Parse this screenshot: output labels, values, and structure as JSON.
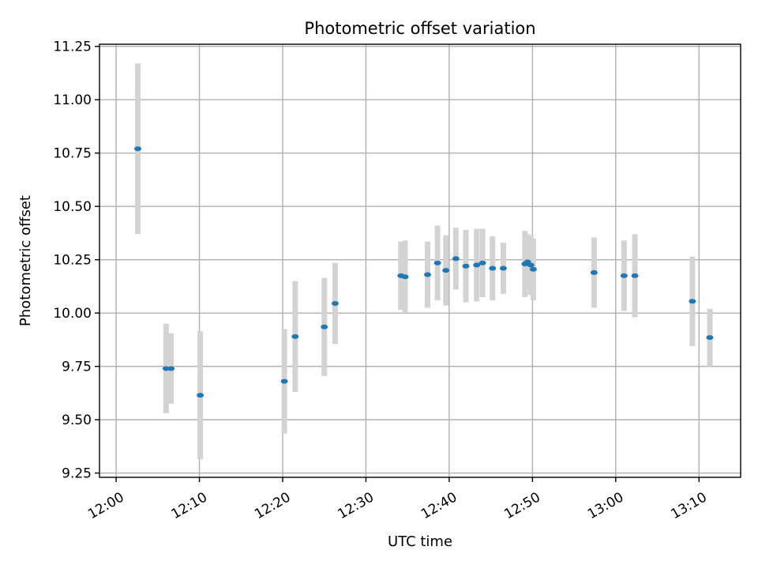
{
  "chart_data": {
    "type": "scatter",
    "title": "Photometric offset variation",
    "xlabel": "UTC time",
    "ylabel": "Photometric offset",
    "grid": true,
    "x_unit": "minutes",
    "xlim": [
      "11:58",
      "13:15"
    ],
    "ylim": [
      9.23,
      11.26
    ],
    "x_ticks": [
      "12:00",
      "12:10",
      "12:20",
      "12:30",
      "12:40",
      "12:50",
      "13:00",
      "13:10"
    ],
    "y_ticks": [
      "9.25",
      "9.50",
      "9.75",
      "10.00",
      "10.25",
      "10.50",
      "10.75",
      "11.00",
      "11.25"
    ],
    "y_tick_values": [
      9.25,
      9.5,
      9.75,
      10.0,
      10.25,
      10.5,
      10.75,
      11.0,
      11.25
    ],
    "colors": {
      "point": "#1f77b4",
      "errorbar": "#d3d3d3",
      "grid": "#b0b0b0"
    },
    "points": [
      {
        "x": "12:02.6",
        "y": 10.77,
        "err": 0.4
      },
      {
        "x": "12:06.0",
        "y": 9.74,
        "err": 0.21
      },
      {
        "x": "12:06.6",
        "y": 9.74,
        "err": 0.165
      },
      {
        "x": "12:10.1",
        "y": 9.615,
        "err": 0.3
      },
      {
        "x": "12:20.2",
        "y": 9.68,
        "err": 0.245
      },
      {
        "x": "12:21.5",
        "y": 9.89,
        "err": 0.26
      },
      {
        "x": "12:25.0",
        "y": 9.935,
        "err": 0.23
      },
      {
        "x": "12:26.3",
        "y": 10.045,
        "err": 0.19
      },
      {
        "x": "12:34.2",
        "y": 10.175,
        "err": 0.16
      },
      {
        "x": "12:34.7",
        "y": 10.17,
        "err": 0.17
      },
      {
        "x": "12:37.4",
        "y": 10.18,
        "err": 0.155
      },
      {
        "x": "12:38.6",
        "y": 10.235,
        "err": 0.175
      },
      {
        "x": "12:39.6",
        "y": 10.2,
        "err": 0.165
      },
      {
        "x": "12:40.8",
        "y": 10.255,
        "err": 0.145
      },
      {
        "x": "12:42.0",
        "y": 10.22,
        "err": 0.17
      },
      {
        "x": "12:43.3",
        "y": 10.225,
        "err": 0.17
      },
      {
        "x": "12:44.0",
        "y": 10.235,
        "err": 0.16
      },
      {
        "x": "12:45.2",
        "y": 10.21,
        "err": 0.15
      },
      {
        "x": "12:46.5",
        "y": 10.21,
        "err": 0.12
      },
      {
        "x": "12:49.1",
        "y": 10.23,
        "err": 0.155
      },
      {
        "x": "12:49.4",
        "y": 10.24,
        "err": 0.13
      },
      {
        "x": "12:49.8",
        "y": 10.225,
        "err": 0.14
      },
      {
        "x": "12:50.1",
        "y": 10.205,
        "err": 0.145
      },
      {
        "x": "12:57.4",
        "y": 10.19,
        "err": 0.165
      },
      {
        "x": "13:01.0",
        "y": 10.175,
        "err": 0.165
      },
      {
        "x": "13:02.3",
        "y": 10.175,
        "err": 0.195
      },
      {
        "x": "13:09.2",
        "y": 10.055,
        "err": 0.21
      },
      {
        "x": "13:11.3",
        "y": 9.885,
        "err": 0.135
      }
    ]
  }
}
